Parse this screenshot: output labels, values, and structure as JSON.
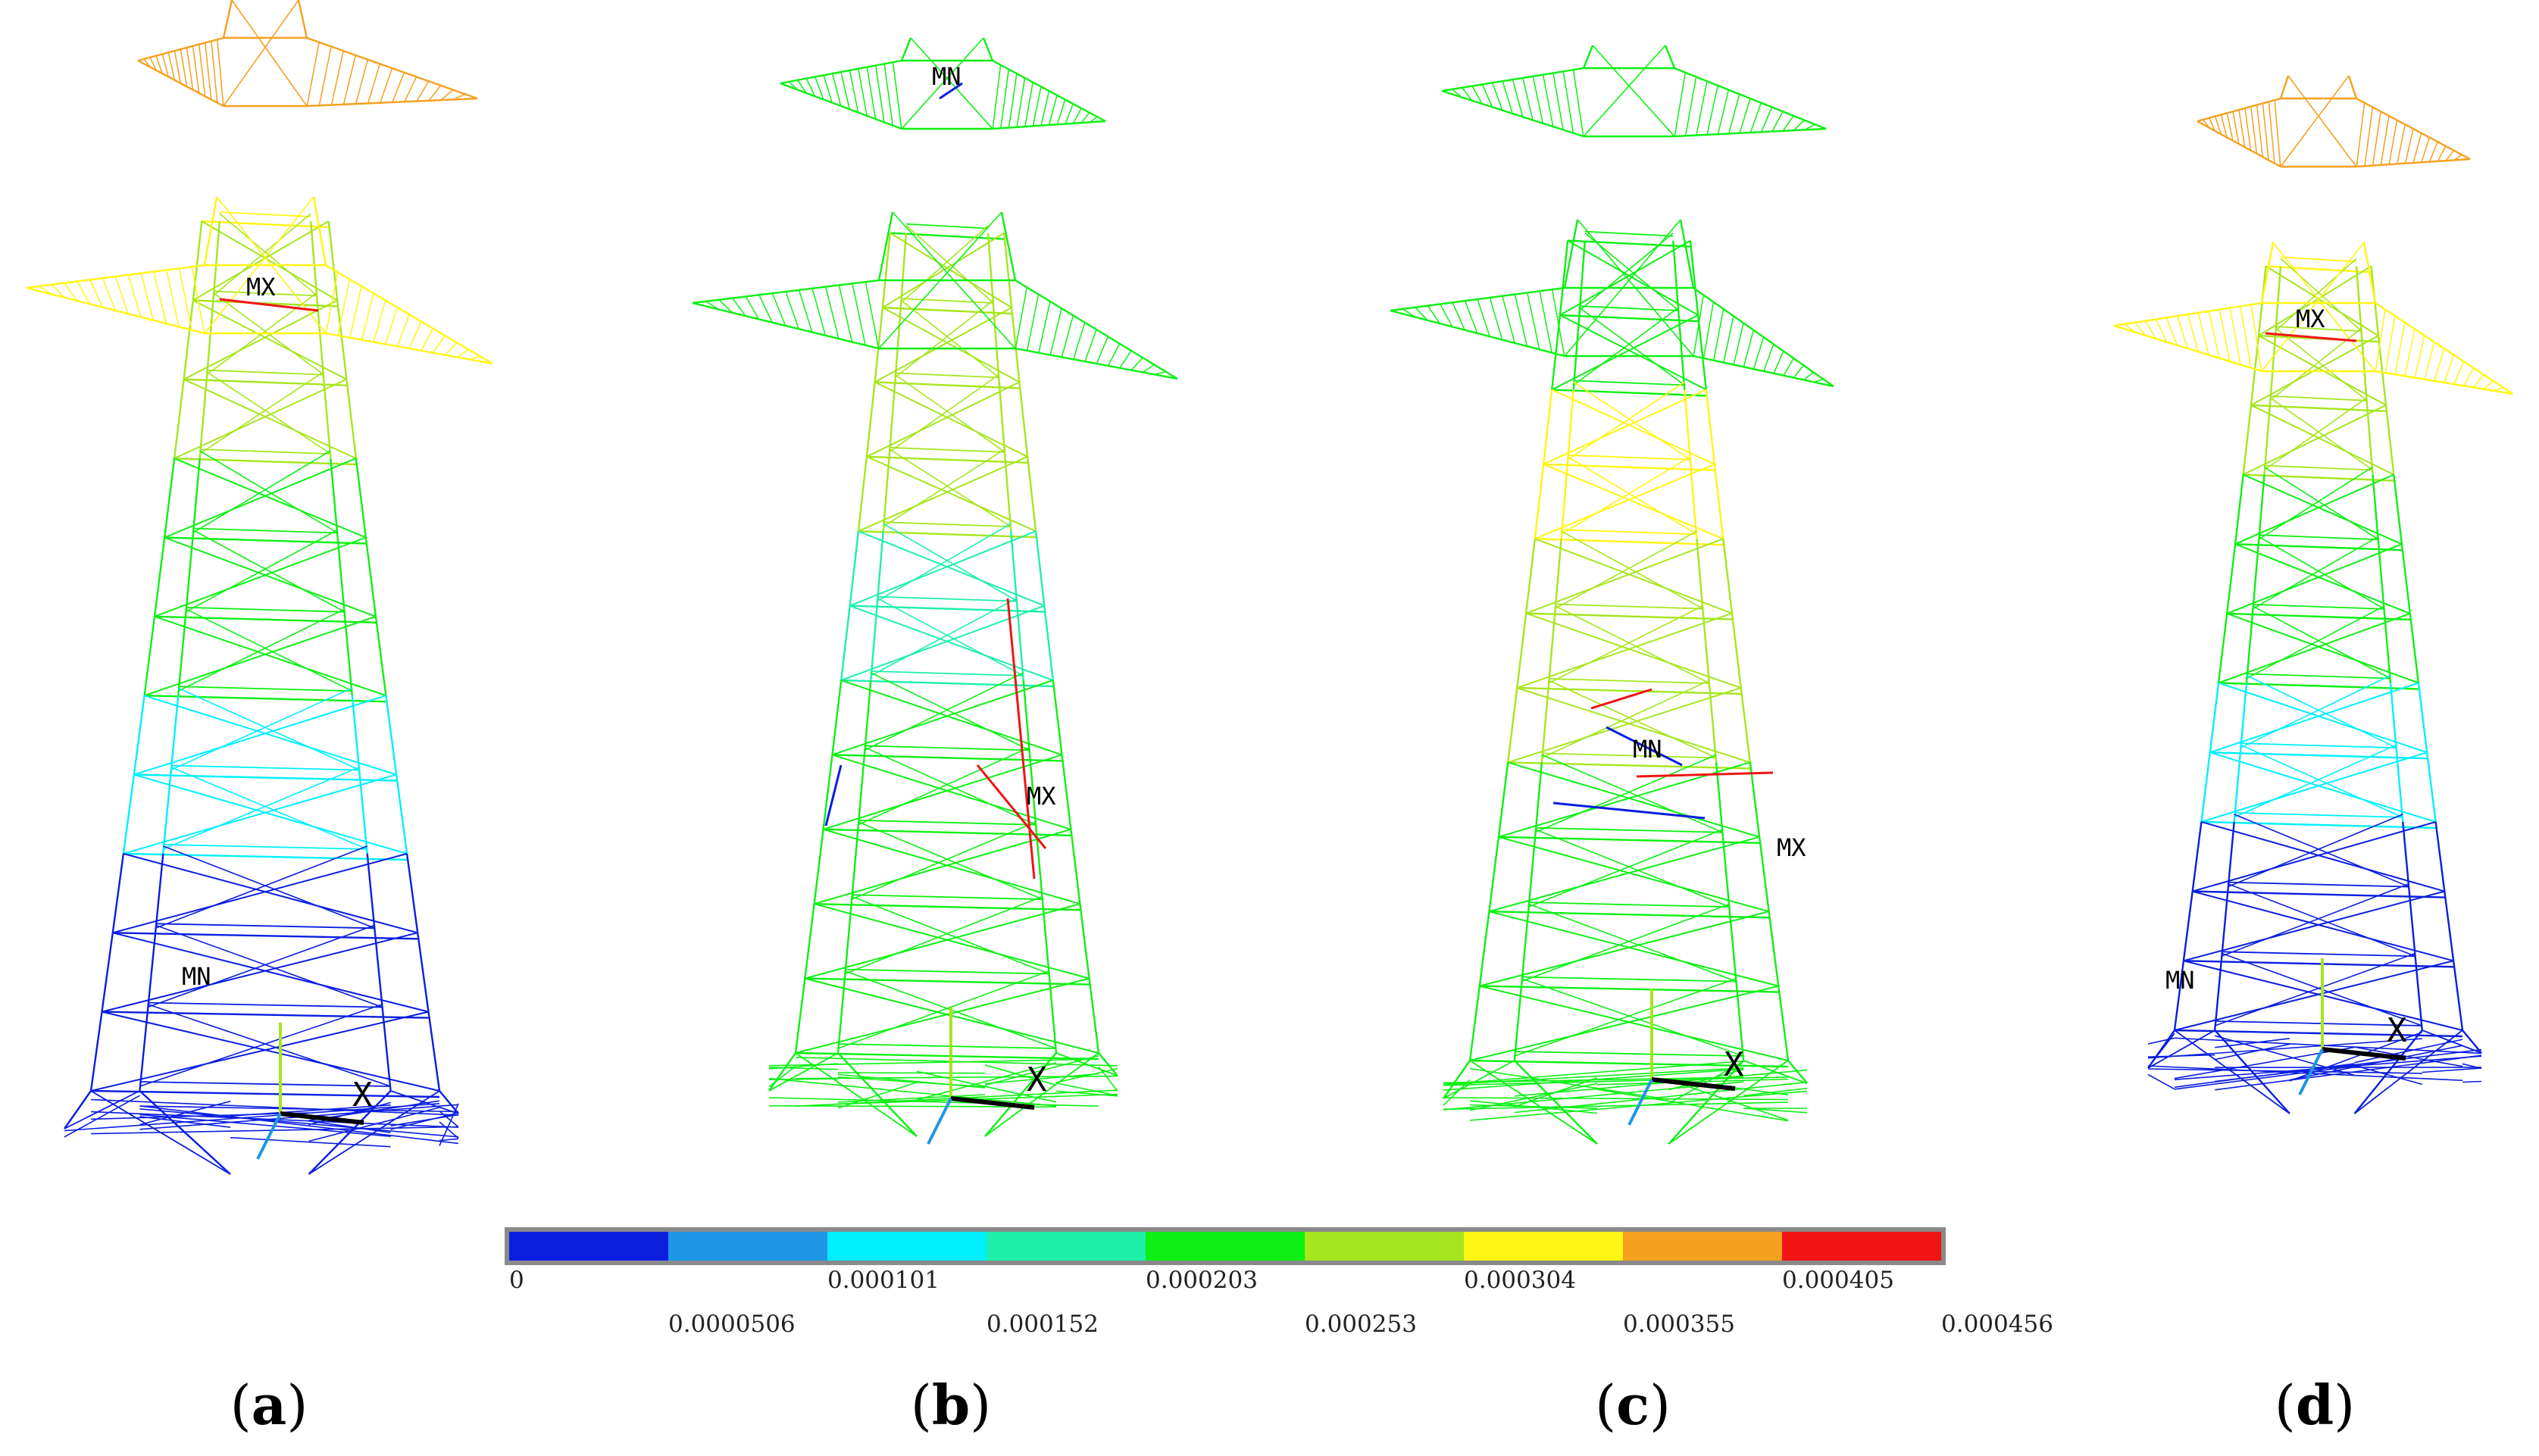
{
  "legend": {
    "colors": [
      "#0a1ee0",
      "#1e96e6",
      "#00f0ff",
      "#1ef0aa",
      "#0ef014",
      "#a6e61e",
      "#fff514",
      "#f5a01e",
      "#f01414"
    ],
    "ticks": [
      "0",
      "0.0000506",
      "0.000101",
      "0.000152",
      "0.000203",
      "0.000253",
      "0.000304",
      "0.000355",
      "0.000405",
      "0.000456"
    ]
  },
  "panels": [
    {
      "id": "a",
      "label": "a",
      "mx": "MX",
      "mn": "MN",
      "axis_x": "X"
    },
    {
      "id": "b",
      "label": "b",
      "mx": "MX",
      "mn": "MN",
      "axis_x": "X"
    },
    {
      "id": "c",
      "label": "c",
      "mx": "MX",
      "mn": "MN",
      "axis_x": "X"
    },
    {
      "id": "d",
      "label": "d",
      "mx": "MX",
      "mn": "MN",
      "axis_x": "X"
    }
  ]
}
